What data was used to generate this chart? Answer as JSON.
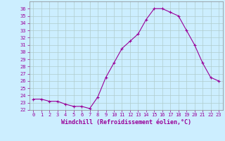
{
  "x": [
    0,
    1,
    2,
    3,
    4,
    5,
    6,
    7,
    8,
    9,
    10,
    11,
    12,
    13,
    14,
    15,
    16,
    17,
    18,
    19,
    20,
    21,
    22,
    23
  ],
  "y": [
    23.5,
    23.5,
    23.2,
    23.2,
    22.8,
    22.5,
    22.5,
    22.2,
    23.8,
    26.5,
    28.5,
    30.5,
    31.5,
    32.5,
    34.5,
    36.0,
    36.0,
    35.5,
    35.0,
    33.0,
    31.0,
    28.5,
    26.5,
    26.0
  ],
  "line_color": "#990099",
  "marker": "+",
  "bg_color": "#cceeff",
  "grid_color": "#b0cccc",
  "xlabel": "Windchill (Refroidissement éolien,°C)",
  "xlabel_color": "#990099",
  "tick_color": "#990099",
  "axis_color": "#888888",
  "ylim": [
    22,
    37
  ],
  "xlim": [
    -0.5,
    23.5
  ],
  "yticks": [
    22,
    23,
    24,
    25,
    26,
    27,
    28,
    29,
    30,
    31,
    32,
    33,
    34,
    35,
    36
  ],
  "xticks": [
    0,
    1,
    2,
    3,
    4,
    5,
    6,
    7,
    8,
    9,
    10,
    11,
    12,
    13,
    14,
    15,
    16,
    17,
    18,
    19,
    20,
    21,
    22,
    23
  ],
  "tick_fontsize": 5.0,
  "label_fontsize": 6.0
}
